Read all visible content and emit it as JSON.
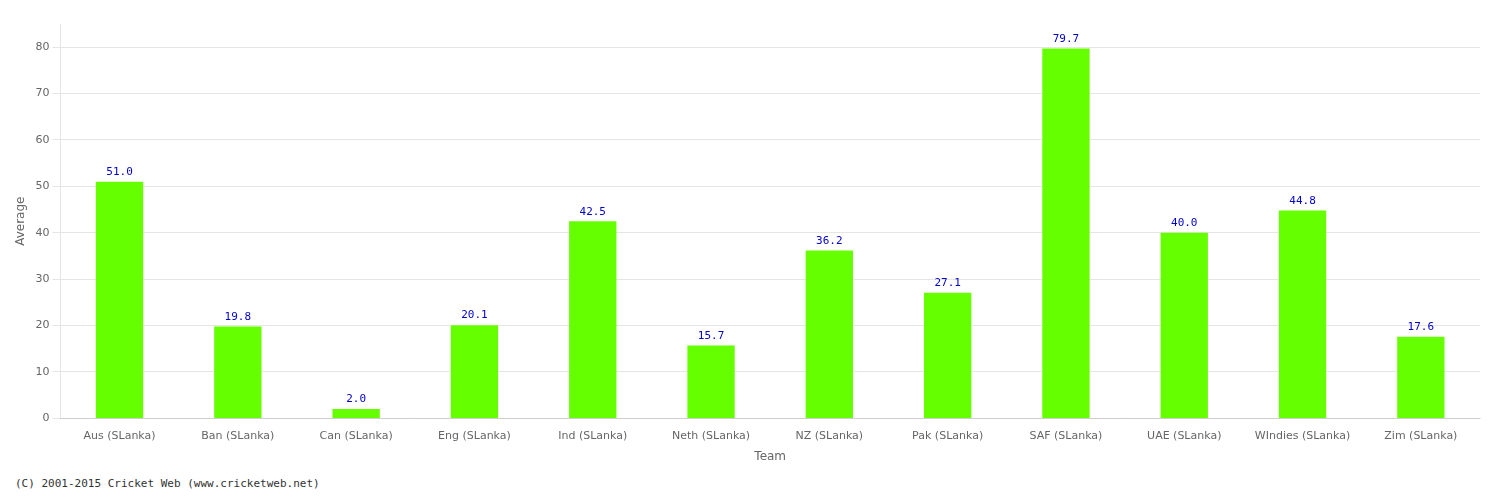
{
  "chart_data": {
    "type": "bar",
    "categories": [
      "Aus (SLanka)",
      "Ban (SLanka)",
      "Can (SLanka)",
      "Eng (SLanka)",
      "Ind (SLanka)",
      "Neth (SLanka)",
      "NZ (SLanka)",
      "Pak (SLanka)",
      "SAF (SLanka)",
      "UAE (SLanka)",
      "WIndies (SLanka)",
      "Zim (SLanka)"
    ],
    "values": [
      51.0,
      19.8,
      2.0,
      20.1,
      42.5,
      15.7,
      36.2,
      27.1,
      79.7,
      40.0,
      44.8,
      17.6
    ],
    "value_labels": [
      "51.0",
      "19.8",
      "2.0",
      "20.1",
      "42.5",
      "15.7",
      "36.2",
      "27.1",
      "79.7",
      "40.0",
      "44.8",
      "17.6"
    ],
    "data_labels": true,
    "color": "#66ff00",
    "xlabel": "Team",
    "ylabel": "Average",
    "ylim": [
      0,
      85
    ],
    "yticks": [
      0,
      10,
      20,
      30,
      40,
      50,
      60,
      70,
      80
    ],
    "grid": true,
    "annotations": [
      "(C) 2001-2015 Cricket Web (www.cricketweb.net)"
    ]
  }
}
